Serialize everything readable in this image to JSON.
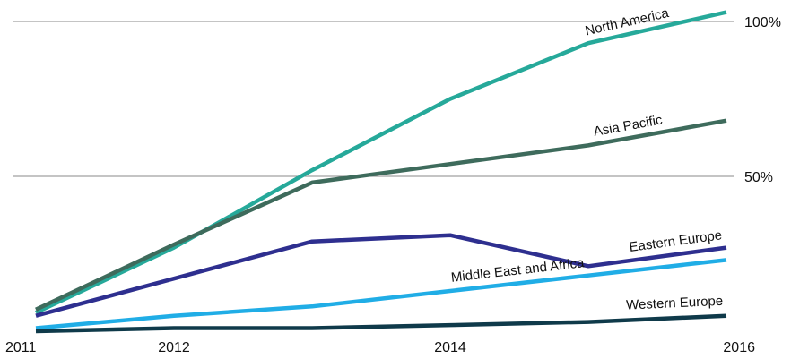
{
  "chart_data": {
    "type": "line",
    "title": "",
    "xlabel": "",
    "ylabel": "",
    "x_range": [
      2011,
      2016
    ],
    "y_range_percent": [
      0,
      100
    ],
    "grid": "horizontal at 50% and 100%",
    "legend": "inline labels at line ends",
    "x_ticks": [
      "2011",
      "2012",
      "2014",
      "2016"
    ],
    "y_ticks": [
      {
        "value": 50,
        "label": "50%"
      },
      {
        "value": 100,
        "label": "100%"
      }
    ],
    "x_points": [
      2011,
      2012,
      2013,
      2014,
      2015,
      2016
    ],
    "series": [
      {
        "name": "North America",
        "color": "#26a99a",
        "values": [
          6,
          27,
          52,
          75,
          93,
          103
        ]
      },
      {
        "name": "Asia Pacific",
        "color": "#3e6b5c",
        "values": [
          7,
          28,
          48,
          54,
          60,
          68
        ]
      },
      {
        "name": "Eastern Europe",
        "color": "#2e2f8f",
        "values": [
          5,
          17,
          29,
          31,
          21,
          27
        ]
      },
      {
        "name": "Middle East and Africa",
        "color": "#20ade6",
        "values": [
          1,
          5,
          8,
          13,
          18,
          23
        ]
      },
      {
        "name": "Western Europe",
        "color": "#0f3a4a",
        "values": [
          0,
          1,
          1,
          2,
          3,
          5
        ]
      }
    ]
  }
}
